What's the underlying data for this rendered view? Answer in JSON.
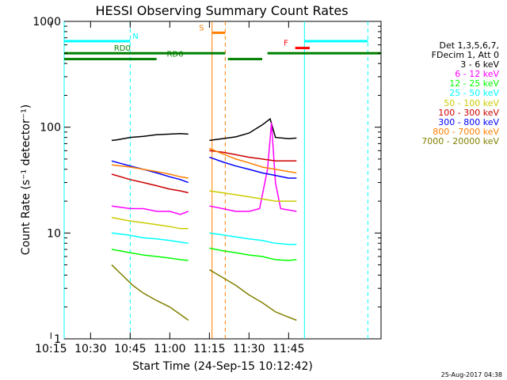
{
  "chart_data": {
    "type": "line",
    "title": "HESSI Observing Summary Count Rates",
    "xlabel": "Start Time (24-Sep-15 10:12:42)",
    "ylabel": "Count Rate (s⁻¹ detector⁻¹)",
    "yscale": "log",
    "ylim": [
      1,
      1000
    ],
    "xlim_minutes": [
      10.2,
      11.8
    ],
    "x_ticks": [
      "10:15",
      "10:30",
      "10:45",
      "11:00",
      "11:15",
      "11:30",
      "11:45"
    ],
    "y_ticks": [
      "1",
      "10",
      "100",
      "1000"
    ],
    "legend_header": [
      "Det 1,3,5,6,7,",
      "FDecim 1, Att 0"
    ],
    "grid": false,
    "legend_position": "right",
    "segments_note": "two data intervals",
    "series": [
      {
        "name": "3 - 6 keV",
        "color": "#000000",
        "seg1": [
          [
            10.38,
            75
          ],
          [
            10.4,
            76
          ],
          [
            10.45,
            80
          ],
          [
            10.5,
            82
          ],
          [
            10.55,
            85
          ],
          [
            10.6,
            86
          ],
          [
            10.64,
            87
          ],
          [
            10.67,
            86
          ]
        ],
        "seg2": [
          [
            11.15,
            75
          ],
          [
            11.2,
            78
          ],
          [
            11.25,
            81
          ],
          [
            11.3,
            88
          ],
          [
            11.35,
            105
          ],
          [
            11.38,
            120
          ],
          [
            11.4,
            80
          ],
          [
            11.45,
            78
          ],
          [
            11.48,
            79
          ]
        ]
      },
      {
        "name": "6 - 12 keV",
        "color": "#ff00ff",
        "seg1": [
          [
            10.38,
            18
          ],
          [
            10.45,
            17
          ],
          [
            10.5,
            17
          ],
          [
            10.55,
            16
          ],
          [
            10.6,
            16
          ],
          [
            10.64,
            15
          ],
          [
            10.67,
            16
          ]
        ],
        "seg2": [
          [
            11.15,
            18
          ],
          [
            11.2,
            17
          ],
          [
            11.25,
            16
          ],
          [
            11.3,
            16
          ],
          [
            11.34,
            17
          ],
          [
            11.37,
            40
          ],
          [
            11.385,
            110
          ],
          [
            11.4,
            30
          ],
          [
            11.42,
            17
          ],
          [
            11.48,
            16
          ]
        ]
      },
      {
        "name": "12 - 25 keV",
        "color": "#00ff00",
        "seg1": [
          [
            10.38,
            7
          ],
          [
            10.45,
            6.5
          ],
          [
            10.5,
            6.2
          ],
          [
            10.55,
            6
          ],
          [
            10.6,
            5.8
          ],
          [
            10.64,
            5.6
          ],
          [
            10.67,
            5.5
          ]
        ],
        "seg2": [
          [
            11.15,
            7.2
          ],
          [
            11.2,
            6.8
          ],
          [
            11.25,
            6.5
          ],
          [
            11.3,
            6.2
          ],
          [
            11.35,
            6
          ],
          [
            11.4,
            5.6
          ],
          [
            11.45,
            5.5
          ],
          [
            11.48,
            5.6
          ]
        ]
      },
      {
        "name": "25 - 50 keV",
        "color": "#00ffff",
        "seg1": [
          [
            10.38,
            10
          ],
          [
            10.45,
            9.5
          ],
          [
            10.5,
            9
          ],
          [
            10.55,
            8.8
          ],
          [
            10.6,
            8.5
          ],
          [
            10.64,
            8.2
          ],
          [
            10.67,
            8
          ]
        ],
        "seg2": [
          [
            11.15,
            10
          ],
          [
            11.2,
            9.6
          ],
          [
            11.25,
            9.2
          ],
          [
            11.3,
            8.8
          ],
          [
            11.35,
            8.5
          ],
          [
            11.4,
            8
          ],
          [
            11.45,
            7.8
          ],
          [
            11.48,
            7.8
          ]
        ]
      },
      {
        "name": "50 - 100 keV",
        "color": "#cccc00",
        "seg1": [
          [
            10.38,
            14
          ],
          [
            10.45,
            13
          ],
          [
            10.5,
            12.5
          ],
          [
            10.55,
            12
          ],
          [
            10.6,
            11.5
          ],
          [
            10.64,
            11
          ],
          [
            10.67,
            11
          ]
        ],
        "seg2": [
          [
            11.15,
            25
          ],
          [
            11.2,
            24
          ],
          [
            11.25,
            23
          ],
          [
            11.3,
            22
          ],
          [
            11.35,
            21
          ],
          [
            11.4,
            20
          ],
          [
            11.45,
            20
          ],
          [
            11.48,
            20
          ]
        ]
      },
      {
        "name": "100 - 300 keV",
        "color": "#cc0000",
        "seg1": [
          [
            10.38,
            36
          ],
          [
            10.45,
            32
          ],
          [
            10.5,
            30
          ],
          [
            10.55,
            28
          ],
          [
            10.6,
            26
          ],
          [
            10.64,
            25
          ],
          [
            10.67,
            24
          ]
        ],
        "seg2": [
          [
            11.15,
            60
          ],
          [
            11.2,
            58
          ],
          [
            11.25,
            55
          ],
          [
            11.3,
            52
          ],
          [
            11.35,
            50
          ],
          [
            11.4,
            48
          ],
          [
            11.45,
            48
          ],
          [
            11.48,
            48
          ]
        ]
      },
      {
        "name": "300 - 800 keV",
        "color": "#0000ff",
        "seg1": [
          [
            10.38,
            48
          ],
          [
            10.45,
            43
          ],
          [
            10.5,
            40
          ],
          [
            10.55,
            37
          ],
          [
            10.6,
            34
          ],
          [
            10.64,
            32
          ],
          [
            10.67,
            30
          ]
        ],
        "seg2": [
          [
            11.15,
            52
          ],
          [
            11.2,
            47
          ],
          [
            11.25,
            43
          ],
          [
            11.3,
            40
          ],
          [
            11.35,
            37
          ],
          [
            11.4,
            35
          ],
          [
            11.45,
            33
          ],
          [
            11.48,
            33
          ]
        ]
      },
      {
        "name": "800 - 7000 keV",
        "color": "#ff7f00",
        "seg1": [
          [
            10.38,
            44
          ],
          [
            10.45,
            42
          ],
          [
            10.5,
            40
          ],
          [
            10.55,
            38
          ],
          [
            10.6,
            36
          ],
          [
            10.64,
            34
          ],
          [
            10.67,
            33
          ]
        ],
        "seg2": [
          [
            11.15,
            63
          ],
          [
            11.2,
            56
          ],
          [
            11.25,
            50
          ],
          [
            11.3,
            46
          ],
          [
            11.35,
            42
          ],
          [
            11.4,
            40
          ],
          [
            11.45,
            38
          ],
          [
            11.48,
            37
          ]
        ]
      },
      {
        "name": "7000 - 20000 keV",
        "color": "#808000",
        "seg1": [
          [
            10.38,
            5
          ],
          [
            10.42,
            4
          ],
          [
            10.46,
            3.2
          ],
          [
            10.5,
            2.7
          ],
          [
            10.55,
            2.3
          ],
          [
            10.6,
            2
          ],
          [
            10.64,
            1.7
          ],
          [
            10.67,
            1.5
          ]
        ],
        "seg2": [
          [
            11.15,
            4.5
          ],
          [
            11.2,
            3.8
          ],
          [
            11.25,
            3.2
          ],
          [
            11.3,
            2.6
          ],
          [
            11.35,
            2.2
          ],
          [
            11.4,
            1.8
          ],
          [
            11.45,
            1.6
          ],
          [
            11.48,
            1.5
          ]
        ]
      }
    ],
    "flags": [
      {
        "label": "N",
        "color": "#00ffff",
        "y": 650,
        "segments": [
          [
            10.2,
            10.45
          ],
          [
            11.51,
            11.75
          ]
        ],
        "label_x": 10.47
      },
      {
        "label": "S",
        "color": "#ff7f00",
        "y": 780,
        "segments": [
          [
            10.76,
            11.21
          ]
        ],
        "label_x": 10.72
      },
      {
        "label": "F",
        "color": "#ff0000",
        "y": 560,
        "segments": [
          [
            11.475,
            11.53
          ]
        ],
        "label_x": 11.44
      },
      {
        "label": "RD0",
        "color": "#008000",
        "y": 500,
        "segments": [
          [
            10.2,
            11.21
          ],
          [
            11.37,
            11.8
          ]
        ],
        "label_x": 10.42
      },
      {
        "label": "RD6",
        "color": "#008000",
        "y": 440,
        "segments": [
          [
            10.2,
            10.55
          ],
          [
            11.22,
            11.35
          ]
        ],
        "label_x": 10.62
      }
    ],
    "vlines": [
      {
        "x": 10.2,
        "color": "#00ffff",
        "style": "solid"
      },
      {
        "x": 10.45,
        "color": "#00ffff",
        "style": "dashed"
      },
      {
        "x": 10.76,
        "color": "#ff7f00",
        "style": "solid"
      },
      {
        "x": 11.21,
        "color": "#ff7f00",
        "style": "dashed"
      },
      {
        "x": 11.51,
        "color": "#00ffff",
        "style": "solid"
      },
      {
        "x": 11.75,
        "color": "#00ffff",
        "style": "dashed"
      }
    ]
  },
  "footer": "25-Aug-2017 04:38"
}
